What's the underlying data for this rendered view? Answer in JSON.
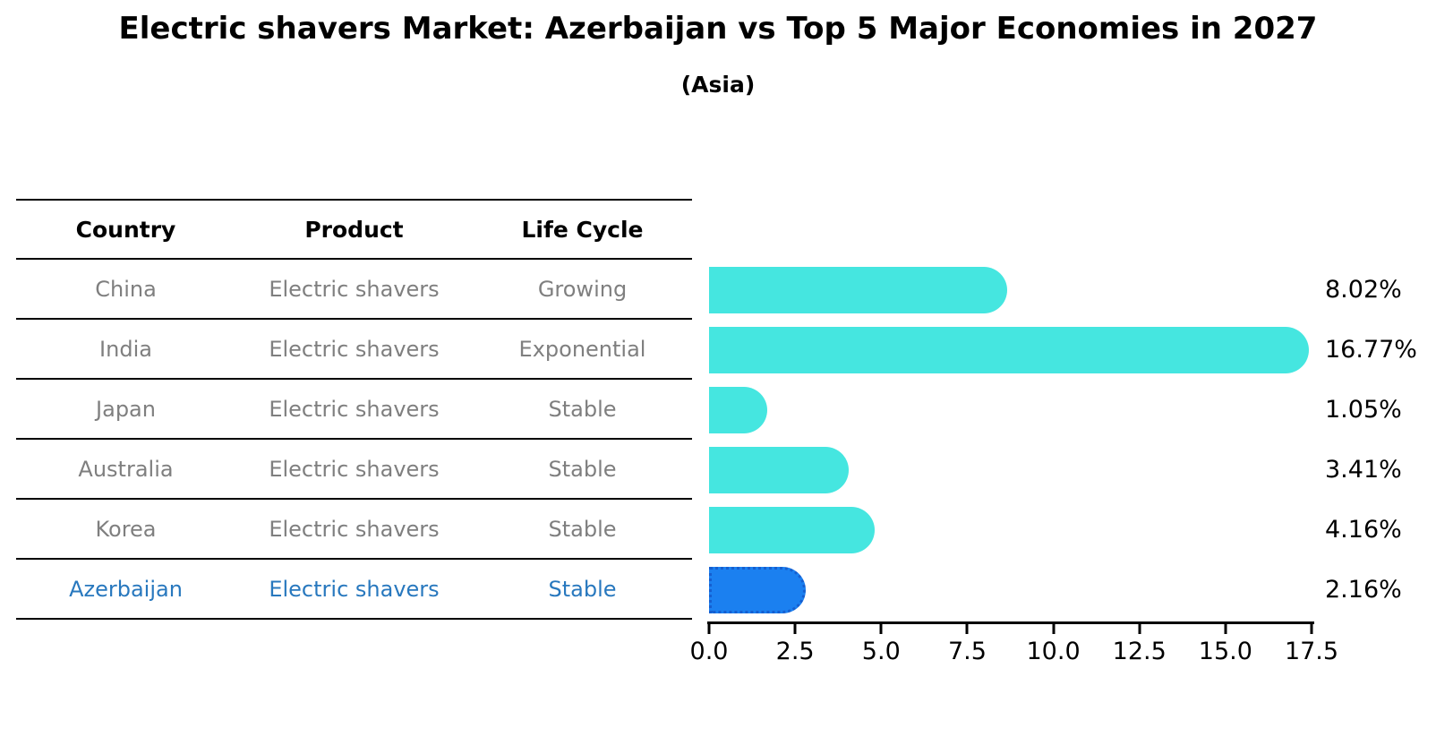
{
  "header": {
    "title": "Electric shavers Market: Azerbaijan vs Top 5 Major Economies in 2027",
    "subtitle": "(Asia)"
  },
  "table": {
    "columns": [
      "Country",
      "Product",
      "Life Cycle"
    ],
    "rows": [
      {
        "country": "China",
        "product": "Electric shavers",
        "life_cycle": "Growing",
        "highlight": false
      },
      {
        "country": "India",
        "product": "Electric shavers",
        "life_cycle": "Exponential",
        "highlight": false
      },
      {
        "country": "Japan",
        "product": "Electric shavers",
        "life_cycle": "Stable",
        "highlight": false
      },
      {
        "country": "Australia",
        "product": "Electric shavers",
        "life_cycle": "Stable",
        "highlight": false
      },
      {
        "country": "Korea",
        "product": "Electric shavers",
        "life_cycle": "Stable",
        "highlight": false
      },
      {
        "country": "Azerbaijan",
        "product": "Electric shavers",
        "life_cycle": "Stable",
        "highlight": true
      }
    ]
  },
  "chart_data": {
    "type": "bar",
    "orientation": "horizontal",
    "title": "Electric shavers Market: Azerbaijan vs Top 5 Major Economies in 2027",
    "subtitle": "(Asia)",
    "categories": [
      "China",
      "India",
      "Japan",
      "Australia",
      "Korea",
      "Azerbaijan"
    ],
    "values": [
      8.02,
      16.77,
      1.05,
      3.41,
      4.16,
      2.16
    ],
    "value_labels": [
      "8.02%",
      "16.77%",
      "1.05%",
      "3.41%",
      "4.16%",
      "2.16%"
    ],
    "xlabel": "",
    "ylabel": "",
    "xlim": [
      0,
      17.5
    ],
    "x_ticks": [
      0.0,
      2.5,
      5.0,
      7.5,
      10.0,
      12.5,
      15.0,
      17.5
    ],
    "grid": false,
    "legend": false,
    "highlight_index": 5,
    "colors": {
      "default_bar": "#45e6e0",
      "highlight_bar": "#1b80f0",
      "highlight_bar_border": "#155fd0",
      "highlight_text": "#2878be",
      "row_text": "#7f7f7f",
      "header_text": "#000000",
      "axis": "#000000"
    }
  }
}
